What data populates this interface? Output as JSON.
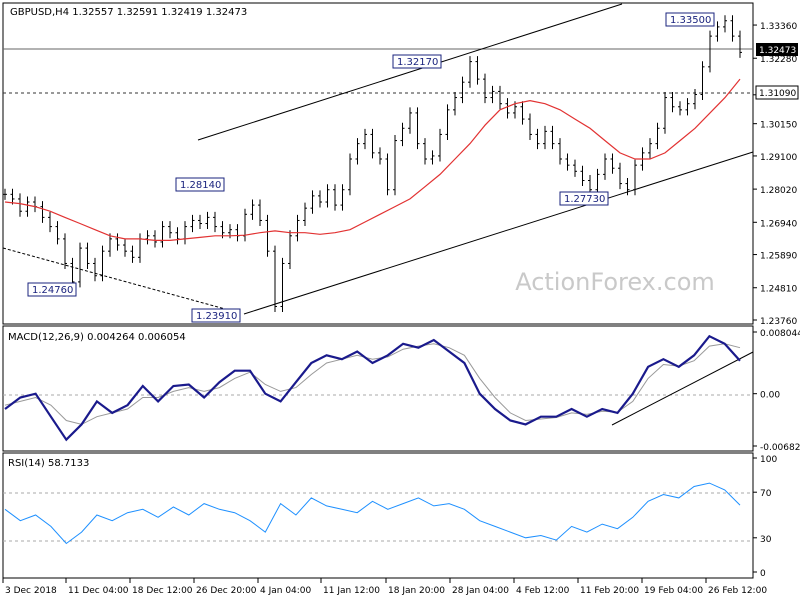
{
  "chart_data": [
    {
      "type": "candlestick",
      "title": "GBPUSD,H4  1.32557 1.32591 1.32419 1.32473",
      "y_ticks": [
        "1.33360",
        "1.32280",
        "1.31090",
        "1.30150",
        "1.29100",
        "1.28020",
        "1.26940",
        "1.25890",
        "1.24810",
        "1.23760"
      ],
      "ylim": [
        1.2376,
        1.3398
      ],
      "x_ticks": [
        "3 Dec 2018",
        "11 Dec 04:00",
        "18 Dec 12:00",
        "26 Dec 20:00",
        "4 Jan 04:00",
        "11 Jan 12:00",
        "18 Jan 20:00",
        "28 Jan 04:00",
        "4 Feb 12:00",
        "11 Feb 20:00",
        "19 Feb 04:00",
        "26 Feb 12:00"
      ],
      "price_series_close": [
        1.2785,
        1.277,
        1.273,
        1.276,
        1.2745,
        1.271,
        1.268,
        1.264,
        1.256,
        1.25,
        1.261,
        1.256,
        1.252,
        1.26,
        1.264,
        1.262,
        1.26,
        1.258,
        1.264,
        1.265,
        1.263,
        1.268,
        1.266,
        1.264,
        1.268,
        1.27,
        1.269,
        1.271,
        1.268,
        1.266,
        1.267,
        1.265,
        1.272,
        1.275,
        1.27,
        1.26,
        1.242,
        1.256,
        1.265,
        1.27,
        1.274,
        1.278,
        1.276,
        1.28,
        1.275,
        1.28,
        1.29,
        1.295,
        1.298,
        1.292,
        1.29,
        1.28,
        1.296,
        1.3,
        1.305,
        1.295,
        1.29,
        1.291,
        1.298,
        1.306,
        1.31,
        1.315,
        1.3217,
        1.316,
        1.31,
        1.312,
        1.308,
        1.305,
        1.307,
        1.303,
        1.298,
        1.295,
        1.299,
        1.295,
        1.29,
        1.288,
        1.286,
        1.283,
        1.28,
        1.285,
        1.29,
        1.287,
        1.282,
        1.28,
        1.288,
        1.292,
        1.295,
        1.3,
        1.31,
        1.307,
        1.306,
        1.308,
        1.311,
        1.32,
        1.33,
        1.333,
        1.335,
        1.33,
        1.3247
      ],
      "moving_average": [
        1.276,
        1.2755,
        1.2745,
        1.273,
        1.271,
        1.269,
        1.267,
        1.265,
        1.264,
        1.264,
        1.2635,
        1.2635,
        1.264,
        1.2645,
        1.265,
        1.265,
        1.2652,
        1.266,
        1.2666,
        1.266,
        1.266,
        1.2655,
        1.266,
        1.267,
        1.2695,
        1.272,
        1.2745,
        1.277,
        1.281,
        1.285,
        1.29,
        1.295,
        1.301,
        1.306,
        1.308,
        1.309,
        1.308,
        1.306,
        1.303,
        1.3,
        1.296,
        1.292,
        1.29,
        1.29,
        1.292,
        1.296,
        1.3,
        1.305,
        1.31,
        1.316
      ],
      "annotations": [
        {
          "text": "1.24760"
        },
        {
          "text": "1.28140"
        },
        {
          "text": "1.23910"
        },
        {
          "text": "1.32170"
        },
        {
          "text": "1.27730"
        },
        {
          "text": "1.33500"
        }
      ],
      "current_price_label": "1.32473",
      "reference_line_label": "1.31090",
      "watermark": "ActionForex.com"
    },
    {
      "type": "line",
      "title": "MACD(12,26,9) 0.004264 0.006054",
      "y_ticks": [
        "0.008044",
        "0.00",
        "-0.006821"
      ],
      "ylim": [
        -0.006821,
        0.008044
      ],
      "series": [
        {
          "name": "MACD",
          "values": [
            -0.002,
            -0.0005,
            0.0,
            -0.003,
            -0.006,
            -0.004,
            -0.001,
            -0.0025,
            -0.0015,
            0.001,
            -0.001,
            0.001,
            0.0012,
            -0.0005,
            0.0015,
            0.003,
            0.003,
            0.0,
            -0.001,
            0.0015,
            0.004,
            0.005,
            0.0045,
            0.0055,
            0.004,
            0.005,
            0.0065,
            0.006,
            0.007,
            0.0055,
            0.004,
            0.0,
            -0.002,
            -0.0035,
            -0.004,
            -0.003,
            -0.003,
            -0.002,
            -0.003,
            -0.002,
            -0.0025,
            0.0,
            0.0035,
            0.0045,
            0.0035,
            0.005,
            0.0075,
            0.0065,
            0.0043
          ]
        },
        {
          "name": "Signal",
          "values": [
            -0.0015,
            -0.001,
            -0.0005,
            -0.0015,
            -0.0035,
            -0.004,
            -0.003,
            -0.0025,
            -0.002,
            -0.0005,
            -0.0005,
            0.0003,
            0.0008,
            0.0003,
            0.0008,
            0.002,
            0.0028,
            0.0012,
            0.0003,
            0.0008,
            0.0025,
            0.004,
            0.0045,
            0.005,
            0.0045,
            0.0048,
            0.0058,
            0.0062,
            0.0065,
            0.006,
            0.005,
            0.002,
            -0.0005,
            -0.0025,
            -0.0035,
            -0.0033,
            -0.0031,
            -0.0025,
            -0.0027,
            -0.0023,
            -0.0024,
            -0.001,
            0.002,
            0.0038,
            0.0036,
            0.0043,
            0.0062,
            0.0065,
            0.006
          ]
        }
      ]
    },
    {
      "type": "line",
      "title": "RSI(14) 58.7133",
      "y_ticks": [
        "100",
        "70",
        "30",
        "0"
      ],
      "ylim": [
        0,
        100
      ],
      "series": [
        {
          "name": "RSI",
          "values": [
            55,
            45,
            50,
            40,
            25,
            35,
            50,
            45,
            52,
            55,
            48,
            57,
            50,
            60,
            55,
            52,
            45,
            35,
            60,
            50,
            65,
            58,
            55,
            52,
            62,
            55,
            60,
            65,
            58,
            60,
            55,
            45,
            40,
            35,
            30,
            32,
            28,
            40,
            35,
            42,
            38,
            48,
            62,
            68,
            65,
            75,
            78,
            72,
            58.7
          ]
        }
      ]
    }
  ]
}
